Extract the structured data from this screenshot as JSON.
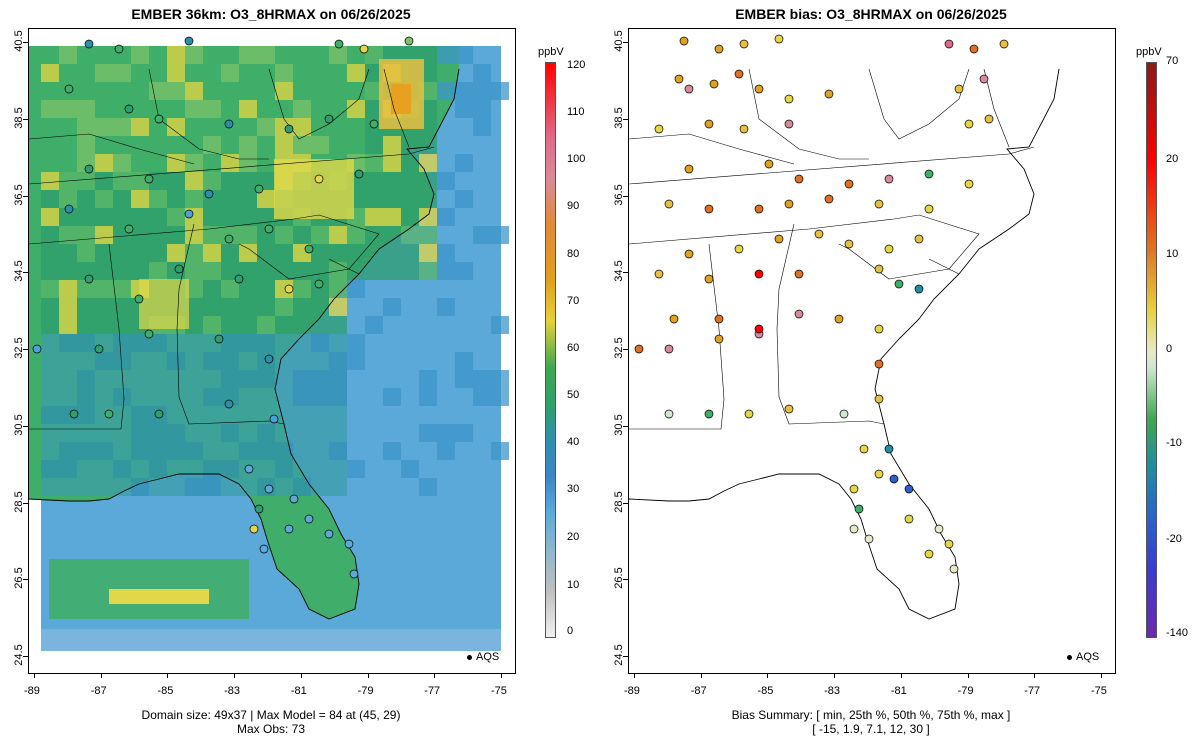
{
  "left_panel": {
    "title": "EMBER 36km: O3_8HRMAX on 06/26/2025",
    "caption_line1": "Domain size: 49x37 | Max Model = 84 at (45, 29)",
    "caption_line2": "Max Obs: 73",
    "legend_label": "AQS",
    "colorbar_unit": "ppbV",
    "colorbar_labels": [
      "120",
      "110",
      "100",
      "90",
      "80",
      "70",
      "60",
      "50",
      "40",
      "30",
      "20",
      "10",
      "0"
    ],
    "x_ticks": [
      "-89",
      "-87",
      "-85",
      "-83",
      "-81",
      "-79",
      "-77",
      "-75"
    ],
    "y_ticks": [
      "40.5",
      "38.5",
      "36.5",
      "34.5",
      "32.5",
      "30.5",
      "28.5",
      "26.5",
      "24.5"
    ]
  },
  "right_panel": {
    "title": "EMBER bias: O3_8HRMAX on 06/26/2025",
    "caption_line1": "Bias Summary: [ min, 25th %, 50th %, 75th %, max ]",
    "caption_line2": "[ -15,   1.9,   7.1,   12,   30 ]",
    "legend_label": "AQS",
    "colorbar_unit": "ppbV",
    "colorbar_labels": [
      "70",
      "20",
      "10",
      "0",
      "-10",
      "-20",
      "-140"
    ],
    "x_ticks": [
      "-89",
      "-87",
      "-85",
      "-83",
      "-81",
      "-79",
      "-77",
      "-75"
    ],
    "y_ticks": [
      "40.5",
      "38.5",
      "36.5",
      "34.5",
      "32.5",
      "30.5",
      "28.5",
      "26.5",
      "24.5"
    ]
  },
  "colors": {
    "ocean": "#5aa9d9",
    "ocean_deep": "#3f8cc8",
    "land_mid": "#3fae6a",
    "land_high": "#e0d84a",
    "hotspot": "#e8a020"
  }
}
